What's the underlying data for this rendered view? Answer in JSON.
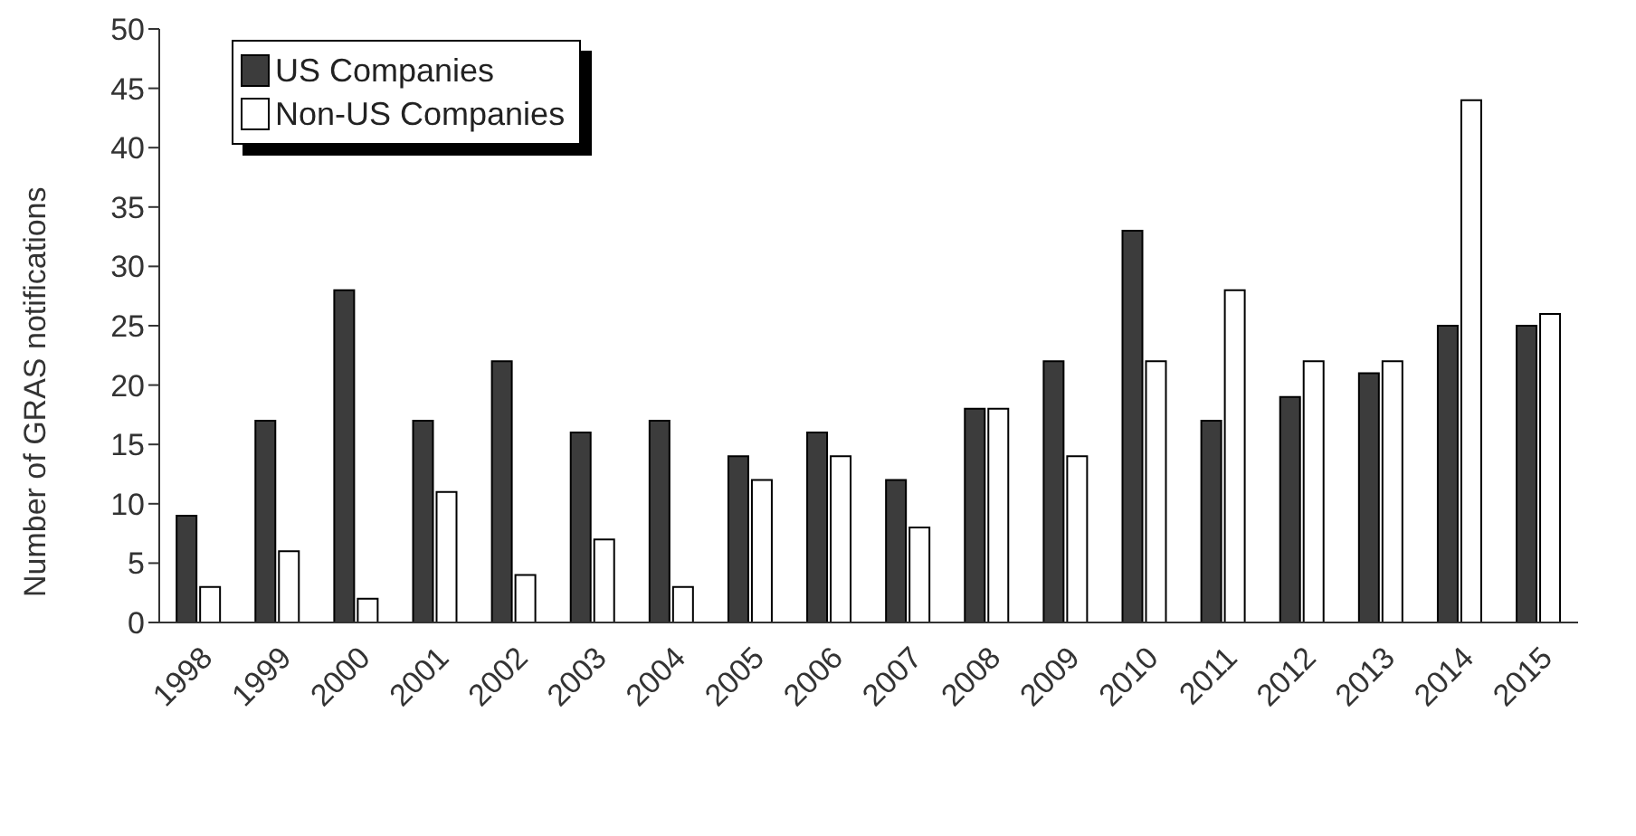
{
  "chart_data": {
    "type": "bar",
    "ylabel": "Number of GRAS notifications",
    "categories": [
      "1998",
      "1999",
      "2000",
      "2001",
      "2002",
      "2003",
      "2004",
      "2005",
      "2006",
      "2007",
      "2008",
      "2009",
      "2010",
      "2011",
      "2012",
      "2013",
      "2014",
      "2015"
    ],
    "series": [
      {
        "name": "US Companies",
        "color": "#3c3c3c",
        "values": [
          9,
          17,
          28,
          17,
          22,
          16,
          17,
          14,
          16,
          12,
          18,
          22,
          33,
          17,
          19,
          21,
          25,
          25
        ]
      },
      {
        "name": "Non-US Companies",
        "color": "#ffffff",
        "values": [
          3,
          6,
          2,
          11,
          4,
          7,
          3,
          12,
          14,
          8,
          18,
          14,
          22,
          28,
          22,
          22,
          44,
          26
        ]
      }
    ],
    "ylim": [
      0,
      50
    ],
    "yticks": [
      0,
      5,
      10,
      15,
      20,
      25,
      30,
      35,
      40,
      45,
      50
    ],
    "grid": false,
    "legend": "top left"
  }
}
